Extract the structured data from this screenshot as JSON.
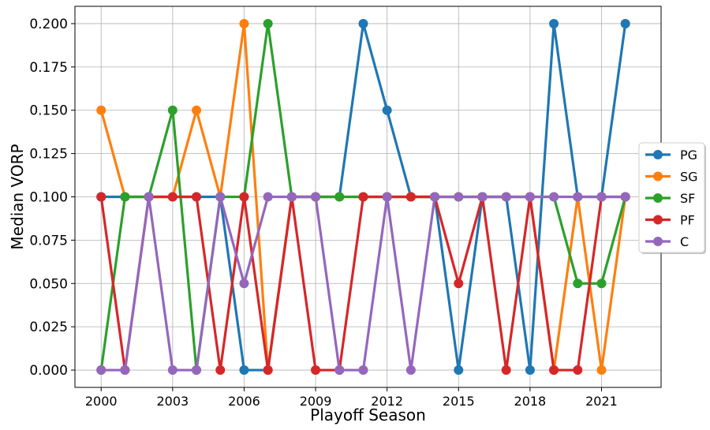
{
  "chart_data": {
    "type": "line",
    "title": "",
    "xlabel": "Playoff Season",
    "ylabel": "Median VORP",
    "x": [
      2000,
      2001,
      2002,
      2003,
      2004,
      2005,
      2006,
      2007,
      2008,
      2009,
      2010,
      2011,
      2012,
      2013,
      2014,
      2015,
      2016,
      2017,
      2018,
      2019,
      2020,
      2021,
      2022
    ],
    "xlim": [
      1998.9,
      2023.5
    ],
    "ylim": [
      -0.01,
      0.21
    ],
    "xticks": [
      2000,
      2003,
      2006,
      2009,
      2012,
      2015,
      2018,
      2021
    ],
    "xtick_labels": [
      "2000",
      "2003",
      "2006",
      "2009",
      "2012",
      "2015",
      "2018",
      "2021"
    ],
    "yticks": [
      0.0,
      0.025,
      0.05,
      0.075,
      0.1,
      0.125,
      0.15,
      0.175,
      0.2
    ],
    "ytick_labels": [
      "0.000",
      "0.025",
      "0.050",
      "0.075",
      "0.100",
      "0.125",
      "0.150",
      "0.175",
      "0.200"
    ],
    "grid": true,
    "legend_position": "right",
    "series": [
      {
        "name": "PG",
        "color": "#1f77b4",
        "values": [
          0.1,
          0.1,
          0.1,
          0.1,
          0.1,
          0.1,
          0.0,
          0.0,
          0.1,
          0.1,
          0.1,
          0.2,
          0.15,
          0.1,
          0.1,
          0.0,
          0.1,
          0.1,
          0.0,
          0.2,
          0.1,
          0.1,
          0.2
        ]
      },
      {
        "name": "SG",
        "color": "#ff7f0e",
        "values": [
          0.15,
          0.1,
          0.1,
          0.1,
          0.15,
          0.1,
          0.2,
          0.0,
          0.1,
          0.1,
          0.1,
          0.1,
          0.1,
          0.1,
          0.1,
          0.1,
          0.1,
          0.1,
          0.1,
          0.0,
          0.1,
          0.0,
          0.1
        ]
      },
      {
        "name": "SF",
        "color": "#2ca02c",
        "values": [
          0.0,
          0.1,
          0.1,
          0.15,
          0.0,
          0.1,
          0.1,
          0.2,
          0.1,
          0.1,
          0.1,
          0.1,
          0.1,
          0.1,
          0.1,
          0.1,
          0.1,
          0.1,
          0.1,
          0.1,
          0.05,
          0.05,
          0.1
        ]
      },
      {
        "name": "PF",
        "color": "#d62728",
        "values": [
          0.1,
          0.0,
          0.1,
          0.1,
          0.1,
          0.0,
          0.1,
          0.0,
          0.1,
          0.0,
          0.0,
          0.1,
          0.1,
          0.1,
          0.1,
          0.05,
          0.1,
          0.0,
          0.1,
          0.0,
          0.0,
          0.1,
          0.1
        ]
      },
      {
        "name": "C",
        "color": "#9467bd",
        "values": [
          0.0,
          0.0,
          0.1,
          0.0,
          0.0,
          0.1,
          0.05,
          0.1,
          0.1,
          0.1,
          0.0,
          0.0,
          0.1,
          0.0,
          0.1,
          0.1,
          0.1,
          0.1,
          0.1,
          0.1,
          0.1,
          0.1,
          0.1
        ]
      }
    ]
  }
}
